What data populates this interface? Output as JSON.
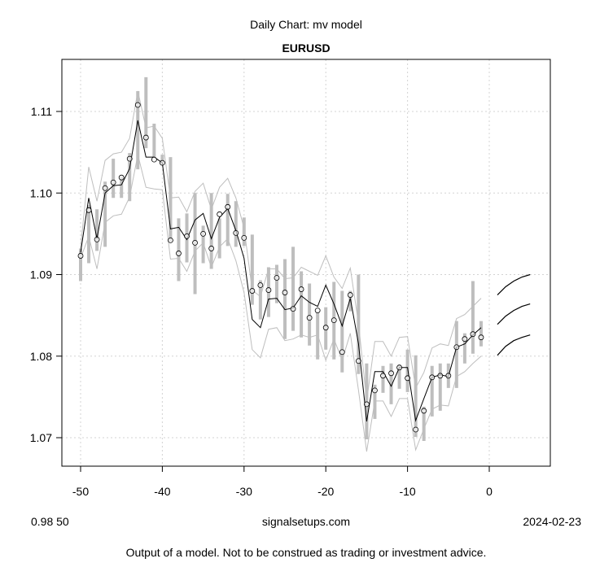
{
  "chart_data": {
    "type": "line",
    "subtitle": "Daily Chart: mv model",
    "title": "EURUSD",
    "xlabel": "",
    "ylabel": "",
    "xlim": [
      -52,
      7.5
    ],
    "ylim": [
      1.0665,
      1.1164
    ],
    "x_ticks": [
      -50,
      -40,
      -30,
      -20,
      -10,
      0
    ],
    "x_tick_labels": [
      "-50",
      "-40",
      "-30",
      "-20",
      "-10",
      "0"
    ],
    "y_ticks": [
      1.07,
      1.08,
      1.09,
      1.1,
      1.11
    ],
    "y_tick_labels": [
      "1.07",
      "1.08",
      "1.09",
      "1.10",
      "1.11"
    ],
    "grid": true,
    "x": [
      -50,
      -49,
      -48,
      -47,
      -46,
      -45,
      -44,
      -43,
      -42,
      -41,
      -40,
      -39,
      -38,
      -37,
      -36,
      -35,
      -34,
      -33,
      -32,
      -31,
      -30,
      -29,
      -28,
      -27,
      -26,
      -25,
      -24,
      -23,
      -22,
      -21,
      -20,
      -19,
      -18,
      -17,
      -16,
      -15,
      -14,
      -13,
      -12,
      -11,
      -10,
      -9,
      -8,
      -7,
      -6,
      -5,
      -4,
      -3,
      -2,
      -1
    ],
    "series": [
      {
        "name": "close",
        "style": "points",
        "values": [
          1.0923,
          1.0979,
          1.0943,
          1.1006,
          1.1013,
          1.1019,
          1.1042,
          1.1108,
          1.1068,
          1.1041,
          1.1037,
          1.0942,
          1.0926,
          1.0947,
          1.0939,
          1.095,
          1.0932,
          1.0974,
          1.0983,
          1.0951,
          1.0945,
          1.088,
          1.0887,
          1.0881,
          1.0896,
          1.0878,
          1.0858,
          1.0882,
          1.0847,
          1.0856,
          1.0835,
          1.0844,
          1.0805,
          1.0875,
          1.0794,
          1.0741,
          1.0758,
          1.0776,
          1.0779,
          1.0786,
          1.0773,
          1.071,
          1.0733,
          1.0774,
          1.0776,
          1.0776,
          1.0811,
          1.0821,
          1.0827,
          1.0823
        ]
      },
      {
        "name": "high",
        "style": "range-bar",
        "values": [
          1.0932,
          1.0985,
          1.098,
          1.1014,
          1.1042,
          1.102,
          1.1049,
          1.1125,
          1.1142,
          1.1085,
          1.1047,
          1.1044,
          1.0969,
          1.0975,
          1.1,
          1.096,
          1.1,
          1.0969,
          1.0999,
          1.099,
          1.097,
          1.0949,
          1.0893,
          1.0909,
          1.0912,
          1.0919,
          1.0934,
          1.0904,
          1.0889,
          1.0855,
          1.086,
          1.0891,
          1.088,
          1.088,
          1.09,
          1.0791,
          1.0765,
          1.0788,
          1.0791,
          1.079,
          1.0808,
          1.0801,
          1.0738,
          1.0788,
          1.0791,
          1.0791,
          1.0843,
          1.0828,
          1.0892,
          1.0843
        ]
      },
      {
        "name": "low",
        "style": "range-bar",
        "values": [
          1.0892,
          1.0914,
          1.0929,
          1.0934,
          1.0994,
          1.0994,
          1.099,
          1.1029,
          1.1055,
          1.1044,
          1.1034,
          1.094,
          1.0892,
          1.0915,
          1.0876,
          1.0914,
          1.0907,
          1.092,
          1.0935,
          1.0934,
          1.0935,
          1.0863,
          1.0845,
          1.0848,
          1.0865,
          1.0821,
          1.0831,
          1.0823,
          1.0813,
          1.0796,
          1.0808,
          1.0796,
          1.078,
          1.0855,
          1.0778,
          1.0698,
          1.0723,
          1.0755,
          1.0741,
          1.076,
          1.0756,
          1.0701,
          1.0696,
          1.0726,
          1.0733,
          1.0761,
          1.0761,
          1.0791,
          1.0803,
          1.0812
        ]
      },
      {
        "name": "model",
        "style": "line",
        "values": [
          1.0927,
          1.0994,
          1.0944,
          1.1,
          1.1009,
          1.101,
          1.103,
          1.1089,
          1.1044,
          1.1044,
          1.1037,
          1.0956,
          1.0958,
          1.0943,
          1.0967,
          1.0975,
          1.0944,
          1.097,
          1.0981,
          1.0954,
          1.092,
          1.0845,
          1.0835,
          1.087,
          1.0871,
          1.0857,
          1.0859,
          1.0874,
          1.0866,
          1.0861,
          1.0887,
          1.0864,
          1.0837,
          1.0871,
          1.0815,
          1.072,
          1.0781,
          1.0781,
          1.0763,
          1.0786,
          1.0786,
          1.0721,
          1.0748,
          1.0774,
          1.0777,
          1.0775,
          1.0811,
          1.0815,
          1.0826,
          1.0835
        ]
      },
      {
        "name": "upper",
        "style": "band-line",
        "values": [
          1.0933,
          1.1032,
          1.099,
          1.104,
          1.1048,
          1.105,
          1.1067,
          1.1125,
          1.108,
          1.1082,
          1.1067,
          1.0994,
          1.0995,
          1.0977,
          1.1002,
          1.1012,
          1.098,
          1.1007,
          1.1018,
          1.0994,
          1.0957,
          1.0881,
          1.0873,
          1.0907,
          1.0907,
          1.0895,
          1.0896,
          1.0909,
          1.0904,
          1.0899,
          1.0923,
          1.0897,
          1.0883,
          1.0908,
          1.084,
          1.0745,
          1.0818,
          1.0818,
          1.08,
          1.0823,
          1.0824,
          1.0761,
          1.078,
          1.081,
          1.0815,
          1.0813,
          1.0846,
          1.0851,
          1.0861,
          1.0871
        ]
      },
      {
        "name": "lower",
        "style": "band-line",
        "values": [
          1.092,
          1.0947,
          1.0907,
          1.0964,
          1.0972,
          1.0974,
          1.0995,
          1.1047,
          1.1007,
          1.1005,
          1.1004,
          1.0919,
          1.092,
          1.0904,
          1.0929,
          1.0939,
          1.0909,
          1.0934,
          1.0944,
          1.0917,
          1.0878,
          1.0808,
          1.0798,
          1.0833,
          1.0835,
          1.0819,
          1.0821,
          1.0826,
          1.0823,
          1.0826,
          1.0795,
          1.0821,
          1.0795,
          1.0828,
          1.0758,
          1.0683,
          1.0745,
          1.0745,
          1.0726,
          1.0748,
          1.0748,
          1.0685,
          1.0711,
          1.0735,
          1.074,
          1.0739,
          1.0775,
          1.0781,
          1.0791,
          1.08
        ]
      }
    ],
    "forecast": {
      "x": [
        1,
        2,
        3,
        4,
        5
      ],
      "series": [
        {
          "name": "forecast-upper",
          "values": [
            1.0875,
            1.0885,
            1.0892,
            1.0897,
            1.09
          ]
        },
        {
          "name": "forecast-mid",
          "values": [
            1.0839,
            1.0849,
            1.0856,
            1.0861,
            1.0864
          ]
        },
        {
          "name": "forecast-lower",
          "values": [
            1.0801,
            1.0812,
            1.0819,
            1.0823,
            1.0826
          ]
        }
      ]
    },
    "colors": {
      "bars": "#bebebe",
      "bands": "#bebebe",
      "model": "#000000",
      "grid": "#d3d3d3"
    }
  },
  "footer": {
    "left": "0.98 50",
    "center": "signalsetups.com",
    "right": "2024-02-23",
    "disclaimer": "Output of a model.  Not to be construed as trading or investment advice."
  }
}
